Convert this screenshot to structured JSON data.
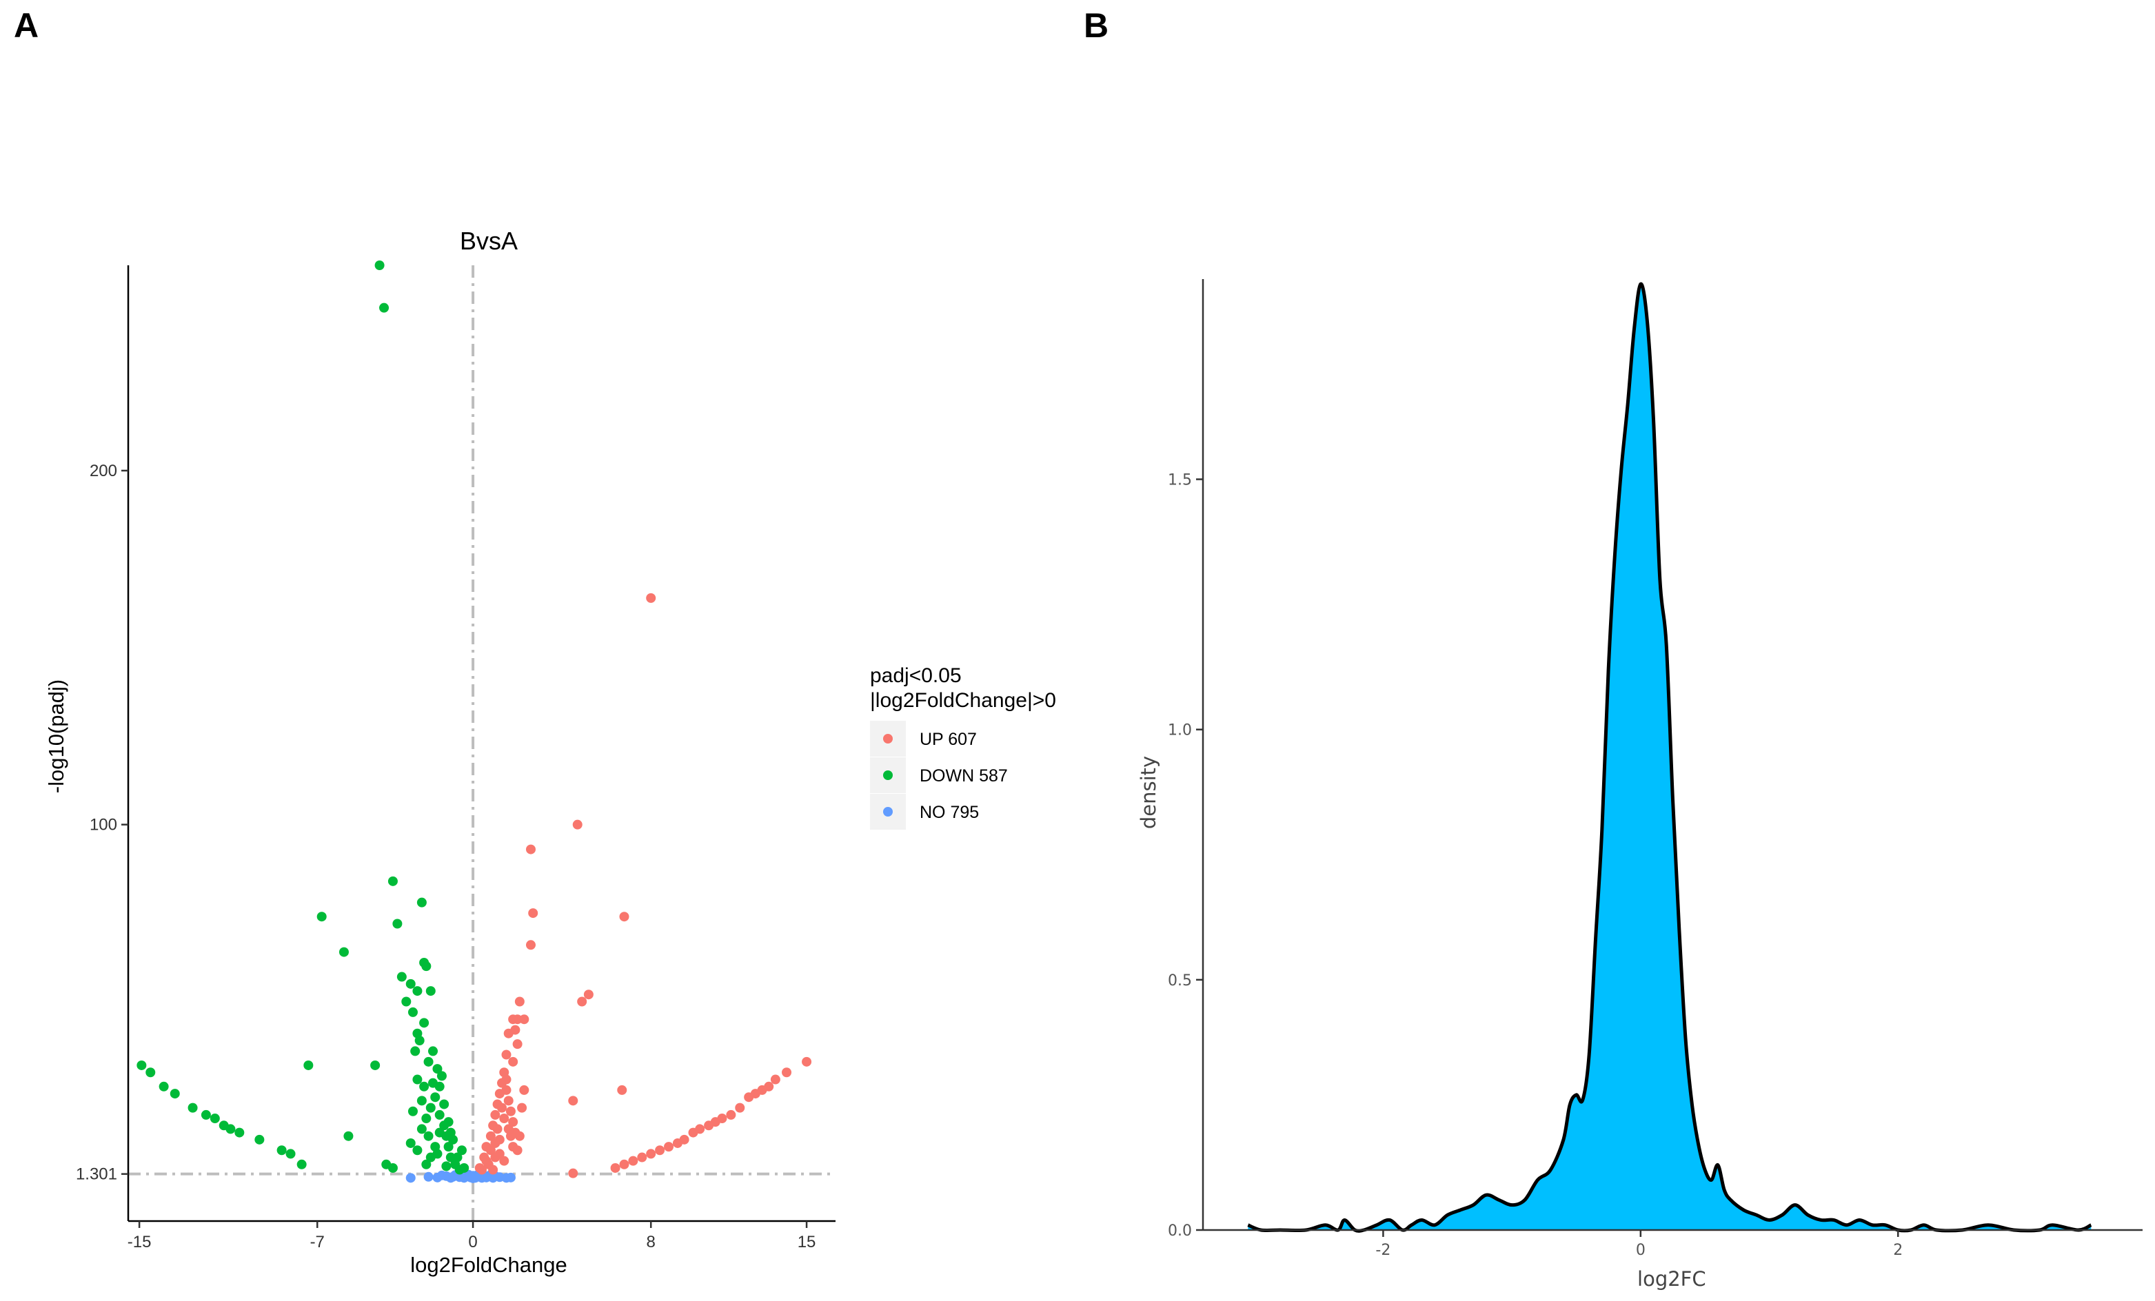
{
  "panels": {
    "a_label": "A",
    "b_label": "B"
  },
  "chart_data": [
    {
      "type": "scatter",
      "title": "BvsA",
      "xlabel": "log2FoldChange",
      "ylabel": "-log10(padj)",
      "x_ticks": [
        -15,
        -7,
        0,
        8,
        15
      ],
      "y_ticks": [
        1.301,
        100,
        200
      ],
      "y_tick_labels": [
        "1.301",
        "100",
        "200"
      ],
      "xlim": [
        -15.5,
        16.3
      ],
      "ylim": [
        -12,
        258
      ],
      "threshold_lines": {
        "x": 0,
        "y": 1.301
      },
      "legend": {
        "title_line1": "padj<0.05",
        "title_line2": "|log2FoldChange|>0",
        "entries": [
          {
            "label": "UP 607",
            "color": "#F8766D"
          },
          {
            "label": "DOWN 587",
            "color": "#00BA38"
          },
          {
            "label": "NO 795",
            "color": "#619CFF"
          }
        ]
      },
      "series": [
        {
          "name": "UP",
          "color": "#F8766D",
          "points": [
            [
              8.0,
              164
            ],
            [
              4.7,
              100
            ],
            [
              2.6,
              93
            ],
            [
              6.8,
              74
            ],
            [
              2.7,
              75
            ],
            [
              2.6,
              66
            ],
            [
              5.2,
              52
            ],
            [
              4.9,
              50
            ],
            [
              2.1,
              50
            ],
            [
              2.3,
              45
            ],
            [
              2.0,
              45
            ],
            [
              1.8,
              45
            ],
            [
              1.6,
              41
            ],
            [
              1.9,
              42
            ],
            [
              2.0,
              38
            ],
            [
              1.5,
              35
            ],
            [
              1.8,
              33
            ],
            [
              6.7,
              25
            ],
            [
              4.5,
              22
            ],
            [
              15.0,
              33
            ],
            [
              14.1,
              30
            ],
            [
              13.6,
              28
            ],
            [
              13.3,
              26
            ],
            [
              13.0,
              25
            ],
            [
              12.7,
              24
            ],
            [
              12.4,
              23
            ],
            [
              12.0,
              20
            ],
            [
              11.6,
              18
            ],
            [
              11.2,
              17
            ],
            [
              10.9,
              16
            ],
            [
              10.6,
              15
            ],
            [
              10.2,
              14
            ],
            [
              9.9,
              13
            ],
            [
              9.5,
              11
            ],
            [
              9.2,
              10
            ],
            [
              8.8,
              9
            ],
            [
              8.4,
              8
            ],
            [
              8.0,
              7
            ],
            [
              7.6,
              6
            ],
            [
              7.2,
              5
            ],
            [
              6.8,
              4
            ],
            [
              6.4,
              3
            ],
            [
              4.5,
              1.5
            ],
            [
              0.3,
              3
            ],
            [
              0.5,
              6
            ],
            [
              0.6,
              9
            ],
            [
              0.8,
              12
            ],
            [
              0.9,
              15
            ],
            [
              1.0,
              18
            ],
            [
              1.1,
              21
            ],
            [
              1.2,
              24
            ],
            [
              1.3,
              27
            ],
            [
              1.4,
              30
            ],
            [
              1.5,
              25
            ],
            [
              1.6,
              22
            ],
            [
              1.7,
              19
            ],
            [
              1.8,
              16
            ],
            [
              1.9,
              13
            ],
            [
              1.0,
              10
            ],
            [
              1.2,
              7
            ],
            [
              1.4,
              5
            ],
            [
              0.7,
              4
            ],
            [
              0.9,
              2.5
            ],
            [
              1.1,
              14
            ],
            [
              1.3,
              20
            ],
            [
              1.5,
              28
            ],
            [
              1.7,
              12
            ],
            [
              0.4,
              2.5
            ],
            [
              0.6,
              5
            ],
            [
              0.8,
              8
            ],
            [
              1.0,
              6
            ],
            [
              1.2,
              11
            ],
            [
              1.4,
              17
            ],
            [
              1.6,
              14
            ],
            [
              1.8,
              9
            ],
            [
              2.0,
              8
            ],
            [
              2.1,
              12
            ],
            [
              2.2,
              20
            ],
            [
              2.3,
              25
            ]
          ]
        },
        {
          "name": "DOWN",
          "color": "#00BA38",
          "points": [
            [
              -4.2,
              258
            ],
            [
              -4.0,
              246
            ],
            [
              -3.6,
              84
            ],
            [
              -2.3,
              78
            ],
            [
              -3.4,
              72
            ],
            [
              -6.8,
              74
            ],
            [
              -5.8,
              64
            ],
            [
              -2.2,
              61
            ],
            [
              -2.1,
              60
            ],
            [
              -3.2,
              57
            ],
            [
              -2.8,
              55
            ],
            [
              -2.5,
              53
            ],
            [
              -1.9,
              53
            ],
            [
              -3.0,
              50
            ],
            [
              -2.7,
              47
            ],
            [
              -2.2,
              44
            ],
            [
              -2.5,
              41
            ],
            [
              -14.9,
              32
            ],
            [
              -14.5,
              30
            ],
            [
              -13.9,
              26
            ],
            [
              -13.4,
              24
            ],
            [
              -12.6,
              20
            ],
            [
              -12.0,
              18
            ],
            [
              -11.6,
              17
            ],
            [
              -11.2,
              15
            ],
            [
              -10.9,
              14
            ],
            [
              -10.5,
              13
            ],
            [
              -9.6,
              11
            ],
            [
              -8.6,
              8
            ],
            [
              -8.2,
              7
            ],
            [
              -7.7,
              4
            ],
            [
              -5.6,
              12
            ],
            [
              -4.4,
              32
            ],
            [
              -7.4,
              32
            ],
            [
              -3.9,
              4
            ],
            [
              -3.6,
              3
            ],
            [
              -2.8,
              10
            ],
            [
              -2.5,
              8
            ],
            [
              -2.3,
              14
            ],
            [
              -2.1,
              17
            ],
            [
              -1.9,
              20
            ],
            [
              -1.7,
              23
            ],
            [
              -1.5,
              26
            ],
            [
              -1.4,
              29
            ],
            [
              -2.0,
              33
            ],
            [
              -1.8,
              36
            ],
            [
              -1.6,
              31
            ],
            [
              -1.5,
              18
            ],
            [
              -1.3,
              15
            ],
            [
              -1.2,
              12
            ],
            [
              -1.1,
              9
            ],
            [
              -1.0,
              6
            ],
            [
              -0.8,
              4
            ],
            [
              -0.6,
              2.5
            ],
            [
              -0.4,
              3
            ],
            [
              -0.9,
              11
            ],
            [
              -1.1,
              16
            ],
            [
              -1.3,
              21
            ],
            [
              -1.5,
              13
            ],
            [
              -1.7,
              9
            ],
            [
              -1.9,
              6
            ],
            [
              -2.1,
              4
            ],
            [
              -2.3,
              22
            ],
            [
              -2.5,
              28
            ],
            [
              -2.6,
              36
            ],
            [
              -2.4,
              39
            ],
            [
              -1.8,
              27
            ],
            [
              -1.6,
              7
            ],
            [
              -1.2,
              3.5
            ],
            [
              -0.7,
              6
            ],
            [
              -0.5,
              8
            ],
            [
              -1.0,
              13
            ],
            [
              -2.0,
              12
            ],
            [
              -2.2,
              26
            ],
            [
              -2.7,
              19
            ]
          ]
        },
        {
          "name": "NO",
          "color": "#619CFF",
          "points": [
            [
              -2.8,
              0.2
            ],
            [
              -2.0,
              0.5
            ],
            [
              -1.6,
              0.3
            ],
            [
              -1.2,
              0.7
            ],
            [
              -1.0,
              0.2
            ],
            [
              -0.8,
              1.0
            ],
            [
              -0.6,
              0.4
            ],
            [
              -0.5,
              0.9
            ],
            [
              -0.4,
              0.2
            ],
            [
              -0.3,
              0.6
            ],
            [
              -0.2,
              1.1
            ],
            [
              -0.1,
              0.3
            ],
            [
              0.0,
              0.8
            ],
            [
              0.1,
              0.2
            ],
            [
              0.2,
              1.0
            ],
            [
              0.3,
              0.5
            ],
            [
              0.4,
              0.2
            ],
            [
              0.5,
              0.9
            ],
            [
              0.6,
              0.3
            ],
            [
              0.7,
              0.6
            ],
            [
              0.8,
              1.1
            ],
            [
              0.9,
              0.2
            ],
            [
              1.0,
              0.7
            ],
            [
              1.2,
              0.4
            ],
            [
              1.5,
              0.2
            ],
            [
              1.7,
              0.3
            ],
            [
              -1.4,
              0.9
            ],
            [
              -0.9,
              0.5
            ],
            [
              0.0,
              0.1
            ],
            [
              0.3,
              1.2
            ]
          ]
        }
      ]
    },
    {
      "type": "area",
      "title": "",
      "xlabel": "log2FC",
      "ylabel": "density",
      "x_ticks": [
        -2,
        0,
        2
      ],
      "x_tick_labels": [
        "-2",
        "0",
        "2"
      ],
      "y_ticks": [
        0.0,
        0.5,
        1.0,
        1.5
      ],
      "y_tick_labels": [
        "0.0",
        "0.5",
        "1.0",
        "1.5"
      ],
      "xlim": [
        -3.4,
        3.9
      ],
      "ylim": [
        0,
        1.9
      ],
      "fill_color": "#00BFFF",
      "line_color": "#000000",
      "x": [
        -3.05,
        -2.95,
        -2.8,
        -2.6,
        -2.45,
        -2.35,
        -2.3,
        -2.22,
        -2.15,
        -2.05,
        -1.95,
        -1.85,
        -1.78,
        -1.7,
        -1.6,
        -1.5,
        -1.4,
        -1.3,
        -1.2,
        -1.1,
        -1.0,
        -0.9,
        -0.8,
        -0.7,
        -0.6,
        -0.55,
        -0.5,
        -0.45,
        -0.4,
        -0.35,
        -0.3,
        -0.25,
        -0.2,
        -0.15,
        -0.1,
        -0.05,
        0.0,
        0.05,
        0.1,
        0.15,
        0.2,
        0.25,
        0.3,
        0.35,
        0.4,
        0.45,
        0.5,
        0.55,
        0.6,
        0.65,
        0.7,
        0.8,
        0.9,
        1.0,
        1.1,
        1.2,
        1.3,
        1.4,
        1.5,
        1.6,
        1.7,
        1.8,
        1.9,
        2.0,
        2.1,
        2.2,
        2.3,
        2.5,
        2.7,
        2.9,
        3.1,
        3.2,
        3.4,
        3.5
      ],
      "y": [
        0.01,
        0.0,
        0.0,
        0.0,
        0.01,
        0.0,
        0.02,
        0.0,
        0.0,
        0.01,
        0.02,
        0.0,
        0.01,
        0.02,
        0.01,
        0.03,
        0.04,
        0.05,
        0.07,
        0.06,
        0.05,
        0.06,
        0.1,
        0.12,
        0.18,
        0.25,
        0.27,
        0.26,
        0.35,
        0.58,
        0.8,
        1.12,
        1.35,
        1.52,
        1.65,
        1.8,
        1.89,
        1.82,
        1.62,
        1.3,
        1.17,
        0.86,
        0.6,
        0.38,
        0.25,
        0.17,
        0.12,
        0.1,
        0.13,
        0.08,
        0.06,
        0.04,
        0.03,
        0.02,
        0.03,
        0.05,
        0.03,
        0.02,
        0.02,
        0.01,
        0.02,
        0.01,
        0.01,
        0.0,
        0.0,
        0.01,
        0.0,
        0.0,
        0.01,
        0.0,
        0.0,
        0.01,
        0.0,
        0.01
      ]
    }
  ]
}
